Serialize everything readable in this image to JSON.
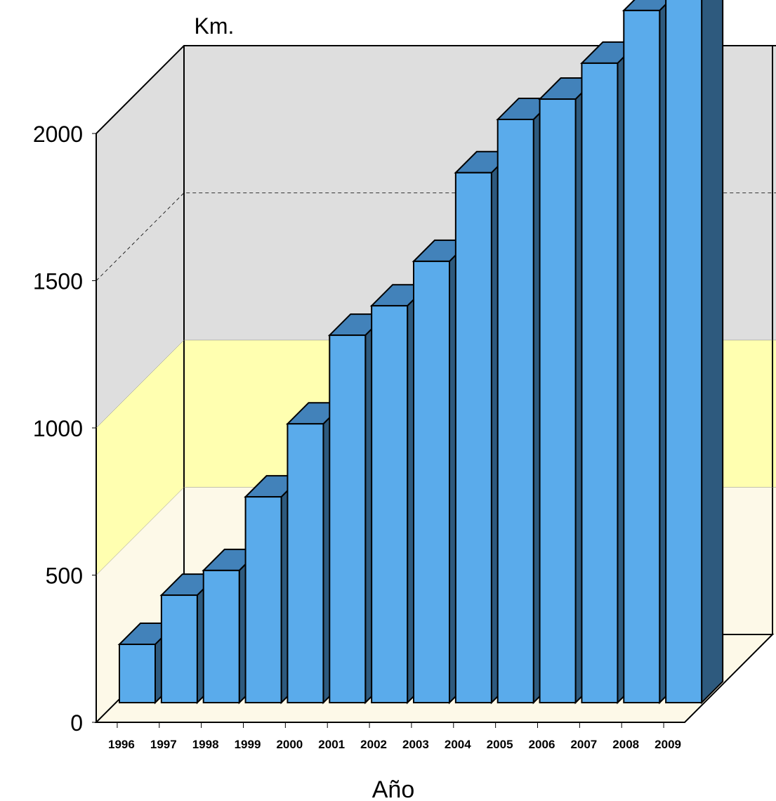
{
  "chart_data": {
    "type": "bar3d",
    "y_label": "Km.",
    "x_label": "Año",
    "categories": [
      "1996",
      "1997",
      "1998",
      "1999",
      "2000",
      "2001",
      "2002",
      "2003",
      "2004",
      "2005",
      "2006",
      "2007",
      "2008",
      "2009"
    ],
    "values": [
      198,
      365,
      449,
      699,
      947,
      1248,
      1348,
      1499,
      1800,
      1981,
      2050,
      2172,
      2351,
      2450
    ],
    "color": "#5aabeb",
    "top_color": "#4282ba",
    "side_color": "#2e5a7e",
    "ylim": [
      0,
      2000
    ],
    "yticks": [
      0,
      500,
      1000,
      1500,
      2000
    ],
    "grid": true
  }
}
